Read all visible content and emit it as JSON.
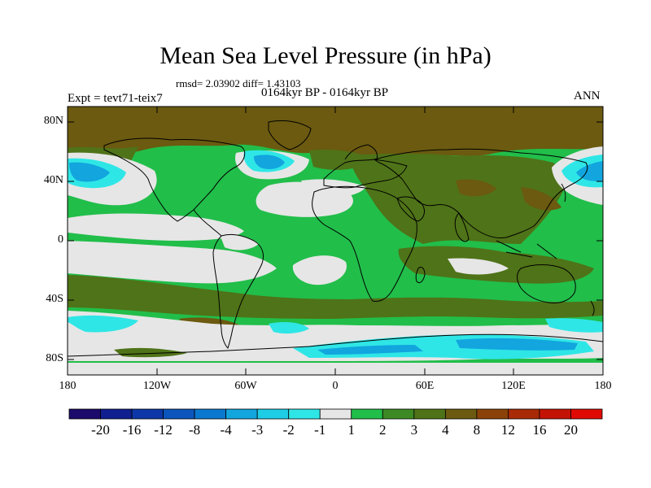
{
  "title": "Mean Sea Level Pressure (in hPa)",
  "stats": "rmsd= 2.03902 diff= 1.43103",
  "period": "0164kyr BP - 0164kyr BP",
  "experiment": "Expt = tevt71-teix7",
  "season": "ANN",
  "lat_labels": [
    "80N",
    "40N",
    "0",
    "40S",
    "80S"
  ],
  "lon_labels": [
    "180",
    "120W",
    "60W",
    "0",
    "60E",
    "120E",
    "180"
  ],
  "colorbar": {
    "levels": [
      "-20",
      "-16",
      "-12",
      "-8",
      "-4",
      "-3",
      "-2",
      "-1",
      "1",
      "2",
      "3",
      "4",
      "8",
      "12",
      "16",
      "20"
    ],
    "colors": [
      "#1b0a6b",
      "#0f1f8f",
      "#0d37a8",
      "#0b55bd",
      "#0a78cf",
      "#12a5de",
      "#1ecde6",
      "#2fe6e6",
      "#e6e6e6",
      "#21be4a",
      "#3d8a25",
      "#4f7318",
      "#6b5a10",
      "#8a4208",
      "#a82a06",
      "#c41205",
      "#e00a05"
    ]
  },
  "colors": {
    "land_outline": "#000000",
    "neutral": "#e6e6e6",
    "green": "#21be4a",
    "olive": "#4f7318",
    "brown": "#6b5a10",
    "cyan": "#2fe6e6",
    "blue": "#12a5de"
  }
}
